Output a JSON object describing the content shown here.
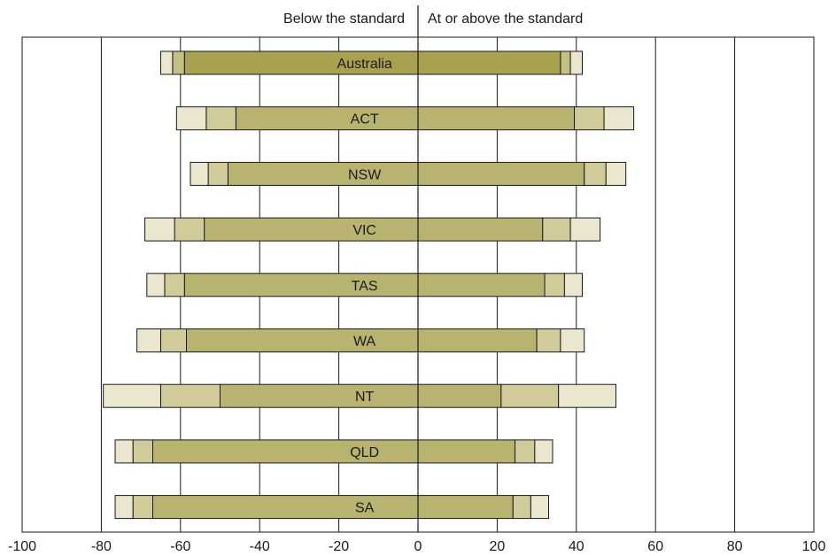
{
  "chart_data": {
    "type": "bar",
    "orientation": "horizontal",
    "layout": "diverging-stacked",
    "headers": {
      "left": "Below the standard",
      "right": "At or above the standard"
    },
    "xlim": [
      -100,
      100
    ],
    "xticks": [
      -100,
      -80,
      -60,
      -40,
      -20,
      0,
      20,
      40,
      60,
      80,
      100
    ],
    "grid": true,
    "legend": "none",
    "categories": [
      "Australia",
      "ACT",
      "NSW",
      "VIC",
      "TAS",
      "WA",
      "NT",
      "QLD",
      "SA"
    ],
    "segments": {
      "below": [
        [
          -59,
          -62,
          -65
        ],
        [
          -46,
          -53.5,
          -61
        ],
        [
          -48,
          -53,
          -57.5
        ],
        [
          -54,
          -61.5,
          -69
        ],
        [
          -59,
          -64,
          -68.5
        ],
        [
          -58.5,
          -65,
          -71
        ],
        [
          -50,
          -65,
          -79.5
        ],
        [
          -67,
          -72,
          -76.5
        ],
        [
          -67,
          -72,
          -76.5
        ]
      ],
      "above": [
        [
          36,
          38.5,
          41.5
        ],
        [
          39.5,
          47,
          54.5
        ],
        [
          42,
          47.5,
          52.5
        ],
        [
          31.5,
          38.5,
          46
        ],
        [
          32,
          37,
          41.5
        ],
        [
          30,
          36,
          42
        ],
        [
          21,
          35.5,
          50
        ],
        [
          24.5,
          29.5,
          34
        ],
        [
          24,
          28.5,
          33
        ]
      ]
    },
    "colors": {
      "inner": "#b8b470",
      "middle": "#d1cb9a",
      "outer": "#ebe7cf",
      "australia_inner": "#a8a24f",
      "australia_middle": "#c4bf84",
      "stroke": "#1a1a1a",
      "grid": "#1a1a1a"
    }
  }
}
